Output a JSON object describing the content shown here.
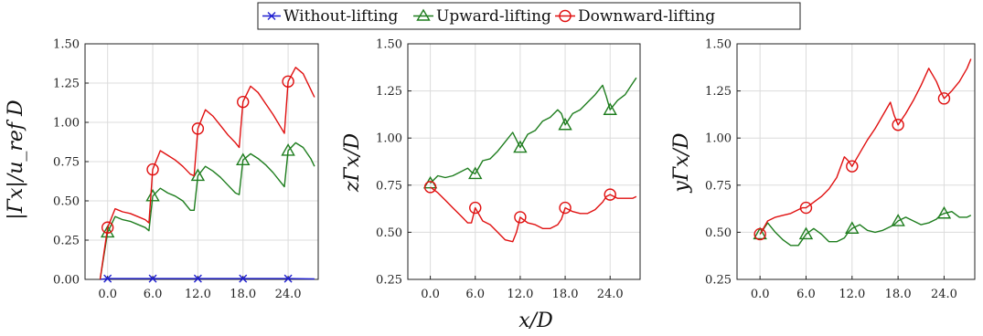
{
  "legend": {
    "entries": [
      {
        "label": "Without-lifting",
        "color": "#1f1fd0",
        "marker": "x"
      },
      {
        "label": "Upward-lifting",
        "color": "#1e7d1e",
        "marker": "triangle"
      },
      {
        "label": "Downward-lifting",
        "color": "#e01010",
        "marker": "circle"
      }
    ]
  },
  "shared_xlabel": "x/D",
  "chart_data": [
    {
      "type": "line",
      "ylabel": "|Γx|/u_ref D",
      "xlim": [
        -3,
        28
      ],
      "ylim": [
        0,
        1.5
      ],
      "xticks": [
        0,
        6,
        12,
        18,
        24
      ],
      "xtick_labels": [
        "0.0",
        "6.0",
        "12.0",
        "18.0",
        "24.0"
      ],
      "yticks": [
        0,
        0.25,
        0.5,
        0.75,
        1.0,
        1.25,
        1.5
      ],
      "ytick_labels": [
        "0.00",
        "0.25",
        "0.50",
        "0.75",
        "1.00",
        "1.25",
        "1.50"
      ],
      "grid": true,
      "series": [
        {
          "name": "Without-lifting",
          "color": "#1f1fd0",
          "marker": "x",
          "x": [
            -1,
            0,
            6,
            12,
            18,
            24,
            27.5
          ],
          "y": [
            0,
            0.005,
            0.005,
            0.005,
            0.005,
            0.005,
            0.003
          ],
          "marker_x": [
            0,
            6,
            12,
            18,
            24
          ],
          "marker_y": [
            0.005,
            0.005,
            0.005,
            0.005,
            0.005
          ]
        },
        {
          "name": "Upward-lifting",
          "color": "#1e7d1e",
          "marker": "triangle",
          "x": [
            -1,
            0,
            1,
            2,
            3,
            4,
            5,
            5.5,
            6,
            7,
            8,
            9,
            10,
            11,
            11.5,
            12,
            13,
            14,
            15,
            16,
            17,
            17.5,
            18,
            19,
            20,
            21,
            22,
            23,
            23.5,
            24,
            25,
            26,
            27,
            27.5
          ],
          "y": [
            0,
            0.3,
            0.4,
            0.38,
            0.37,
            0.35,
            0.33,
            0.31,
            0.53,
            0.58,
            0.55,
            0.53,
            0.5,
            0.44,
            0.44,
            0.66,
            0.72,
            0.69,
            0.65,
            0.6,
            0.55,
            0.54,
            0.76,
            0.8,
            0.77,
            0.73,
            0.68,
            0.62,
            0.59,
            0.82,
            0.87,
            0.84,
            0.77,
            0.72
          ],
          "marker_x": [
            0,
            6,
            12,
            18,
            24
          ],
          "marker_y": [
            0.3,
            0.53,
            0.66,
            0.76,
            0.82
          ]
        },
        {
          "name": "Downward-lifting",
          "color": "#e01010",
          "marker": "circle",
          "x": [
            -1,
            0,
            1,
            2,
            3,
            4,
            5,
            5.5,
            6,
            7,
            8,
            9,
            10,
            11,
            11.5,
            12,
            13,
            14,
            15,
            16,
            17,
            17.5,
            18,
            19,
            20,
            21,
            22,
            23,
            23.5,
            24,
            25,
            26,
            27,
            27.5
          ],
          "y": [
            0,
            0.33,
            0.45,
            0.43,
            0.42,
            0.4,
            0.38,
            0.36,
            0.7,
            0.82,
            0.79,
            0.76,
            0.72,
            0.67,
            0.66,
            0.96,
            1.08,
            1.04,
            0.98,
            0.92,
            0.87,
            0.84,
            1.13,
            1.23,
            1.19,
            1.12,
            1.05,
            0.97,
            0.93,
            1.26,
            1.35,
            1.31,
            1.21,
            1.16
          ],
          "marker_x": [
            0,
            6,
            12,
            18,
            24
          ],
          "marker_y": [
            0.33,
            0.7,
            0.96,
            1.13,
            1.26
          ]
        }
      ]
    },
    {
      "type": "line",
      "ylabel": "zΓx/D",
      "xlim": [
        -3,
        28
      ],
      "ylim": [
        0.25,
        1.5
      ],
      "xticks": [
        0,
        6,
        12,
        18,
        24
      ],
      "xtick_labels": [
        "0.0",
        "6.0",
        "12.0",
        "18.0",
        "24.0"
      ],
      "yticks": [
        0.25,
        0.5,
        0.75,
        1.0,
        1.25,
        1.5
      ],
      "ytick_labels": [
        "0.25",
        "0.50",
        "0.75",
        "1.00",
        "1.25",
        "1.50"
      ],
      "grid": true,
      "series": [
        {
          "name": "Upward-lifting",
          "color": "#1e7d1e",
          "marker": "triangle",
          "x": [
            0,
            1,
            2,
            3,
            4,
            5,
            5.5,
            6,
            7,
            8,
            9,
            10,
            11,
            11.5,
            12,
            13,
            14,
            15,
            16,
            17,
            17.5,
            18,
            19,
            20,
            21,
            22,
            23,
            23.5,
            24,
            25,
            26,
            27,
            27.5
          ],
          "y": [
            0.76,
            0.8,
            0.79,
            0.8,
            0.82,
            0.84,
            0.82,
            0.81,
            0.88,
            0.89,
            0.93,
            0.98,
            1.03,
            0.99,
            0.95,
            1.02,
            1.04,
            1.09,
            1.11,
            1.15,
            1.13,
            1.07,
            1.13,
            1.15,
            1.19,
            1.23,
            1.28,
            1.22,
            1.15,
            1.2,
            1.23,
            1.29,
            1.32
          ],
          "marker_x": [
            0,
            6,
            12,
            18,
            24
          ],
          "marker_y": [
            0.76,
            0.81,
            0.95,
            1.07,
            1.15
          ]
        },
        {
          "name": "Downward-lifting",
          "color": "#e01010",
          "marker": "circle",
          "x": [
            0,
            1,
            2,
            3,
            4,
            5,
            5.5,
            6,
            7,
            8,
            9,
            10,
            11,
            11.5,
            12,
            13,
            14,
            15,
            16,
            17,
            17.5,
            18,
            19,
            20,
            21,
            22,
            23,
            23.5,
            24,
            25,
            26,
            27,
            27.5
          ],
          "y": [
            0.74,
            0.71,
            0.67,
            0.63,
            0.59,
            0.55,
            0.55,
            0.63,
            0.56,
            0.54,
            0.5,
            0.46,
            0.45,
            0.5,
            0.58,
            0.55,
            0.54,
            0.52,
            0.52,
            0.54,
            0.57,
            0.63,
            0.61,
            0.6,
            0.6,
            0.62,
            0.66,
            0.69,
            0.7,
            0.68,
            0.68,
            0.68,
            0.69
          ],
          "marker_x": [
            0,
            6,
            12,
            18,
            24
          ],
          "marker_y": [
            0.74,
            0.63,
            0.58,
            0.63,
            0.7
          ]
        }
      ]
    },
    {
      "type": "line",
      "ylabel": "yΓx/D",
      "xlim": [
        -3,
        28
      ],
      "ylim": [
        0.25,
        1.5
      ],
      "xticks": [
        0,
        6,
        12,
        18,
        24
      ],
      "xtick_labels": [
        "0.0",
        "6.0",
        "12.0",
        "18.0",
        "24.0"
      ],
      "yticks": [
        0.25,
        0.5,
        0.75,
        1.0,
        1.25,
        1.5
      ],
      "ytick_labels": [
        "0.25",
        "0.50",
        "0.75",
        "1.00",
        "1.25",
        "1.50"
      ],
      "grid": true,
      "series": [
        {
          "name": "Upward-lifting",
          "color": "#1e7d1e",
          "marker": "triangle",
          "x": [
            0,
            1,
            2,
            3,
            4,
            5,
            5.5,
            6,
            7,
            8,
            9,
            10,
            11,
            11.5,
            12,
            13,
            14,
            15,
            16,
            17,
            17.5,
            18,
            19,
            20,
            21,
            22,
            23,
            23.5,
            24,
            25,
            26,
            27,
            27.5
          ],
          "y": [
            0.49,
            0.55,
            0.5,
            0.46,
            0.43,
            0.43,
            0.46,
            0.49,
            0.52,
            0.49,
            0.45,
            0.45,
            0.47,
            0.5,
            0.52,
            0.54,
            0.51,
            0.5,
            0.51,
            0.53,
            0.54,
            0.56,
            0.58,
            0.56,
            0.54,
            0.55,
            0.57,
            0.59,
            0.6,
            0.61,
            0.58,
            0.58,
            0.59
          ],
          "marker_x": [
            0,
            6,
            12,
            18,
            24
          ],
          "marker_y": [
            0.49,
            0.49,
            0.52,
            0.56,
            0.6
          ]
        },
        {
          "name": "Downward-lifting",
          "color": "#e01010",
          "marker": "circle",
          "x": [
            0,
            1,
            2,
            3,
            4,
            5,
            5.5,
            6,
            7,
            8,
            9,
            10,
            11,
            11.5,
            12,
            13,
            14,
            15,
            16,
            17,
            17.5,
            18,
            19,
            20,
            21,
            22,
            23,
            23.5,
            24,
            25,
            26,
            27,
            27.5
          ],
          "y": [
            0.49,
            0.56,
            0.58,
            0.59,
            0.6,
            0.62,
            0.63,
            0.63,
            0.66,
            0.69,
            0.73,
            0.79,
            0.9,
            0.88,
            0.85,
            0.92,
            0.99,
            1.05,
            1.12,
            1.19,
            1.12,
            1.07,
            1.13,
            1.2,
            1.28,
            1.37,
            1.3,
            1.25,
            1.21,
            1.25,
            1.3,
            1.37,
            1.42
          ],
          "marker_x": [
            0,
            6,
            12,
            18,
            24
          ],
          "marker_y": [
            0.49,
            0.63,
            0.85,
            1.07,
            1.21
          ]
        }
      ]
    }
  ]
}
